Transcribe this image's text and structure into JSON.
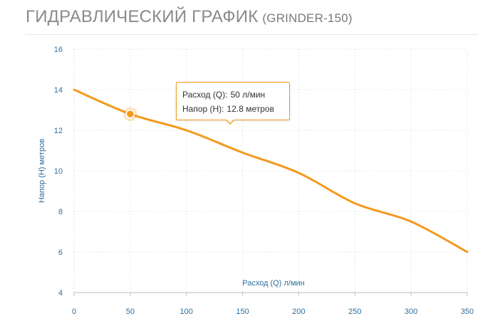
{
  "header": {
    "title": "ГИДРАВЛИЧЕСКИЙ ГРАФИК",
    "model": "(GRINDER-150)"
  },
  "tooltip": {
    "flow_label": "Расход (Q):",
    "flow_value": "50 л/мин",
    "head_label": "Напор (H):",
    "head_value": "12.8 метров"
  },
  "colors": {
    "curve": "#f39a1e",
    "axis_text": "#2e6f9e",
    "grid": "#d9d9d9"
  },
  "chart_data": {
    "type": "line",
    "title": "ГИДРАВЛИЧЕСКИЙ ГРАФИК (GRINDER-150)",
    "xlabel": "Расход (Q) л/мин",
    "ylabel": "Напор (H) метров",
    "xlim": [
      0,
      350
    ],
    "ylim": [
      4,
      16
    ],
    "xticks": [
      0,
      50,
      100,
      150,
      200,
      250,
      300,
      350
    ],
    "yticks": [
      4,
      6,
      8,
      10,
      12,
      14,
      16
    ],
    "grid": true,
    "series": [
      {
        "x": [
          0,
          50,
          100,
          150,
          200,
          250,
          300,
          350
        ],
        "values": [
          14,
          12.8,
          12,
          10.9,
          9.9,
          8.4,
          7.5,
          6
        ]
      }
    ],
    "highlight": {
      "x": 50,
      "y": 12.8
    }
  }
}
